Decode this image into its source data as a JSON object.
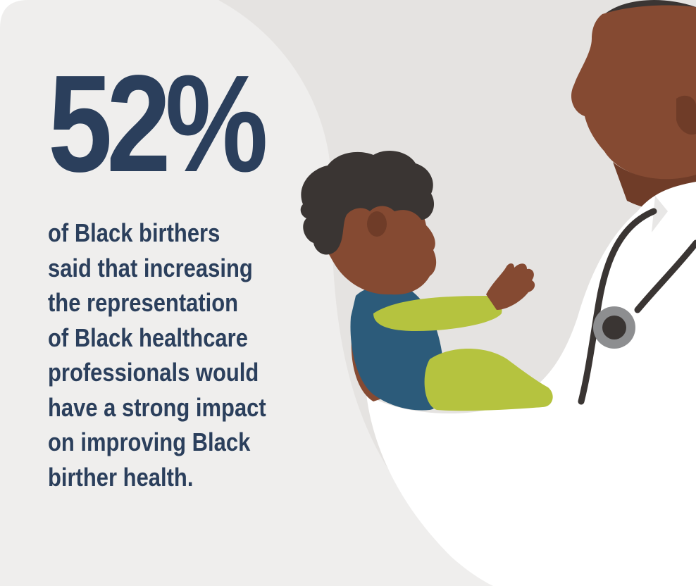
{
  "statistic": {
    "value": "52%",
    "caption_lines": [
      "of Black birthers",
      "said that increasing",
      "the representation",
      "of Black healthcare",
      "professionals would",
      "have a strong impact",
      "on improving Black",
      "birther health."
    ]
  },
  "colors": {
    "text": "#2b3f5c",
    "background": "#efeeed",
    "skin": "#854a32",
    "hair": "#3a3533",
    "baby_shirt_teal": "#2c5b7a",
    "baby_sleeve_green": "#b5c33f",
    "coat": "#ffffff",
    "stethoscope": "#8d8e90"
  },
  "illustration": {
    "icons": [
      "infant-figure",
      "doctor-figure",
      "stethoscope-icon"
    ]
  }
}
